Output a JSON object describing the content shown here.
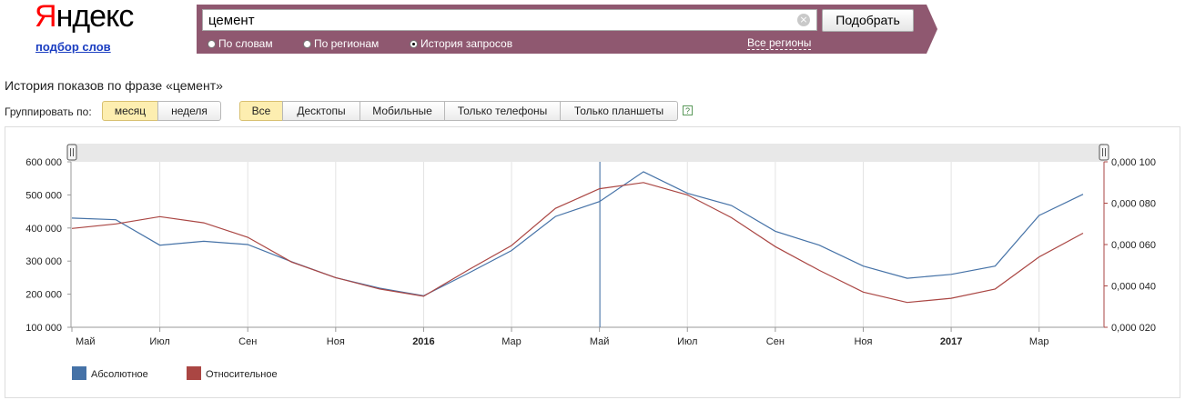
{
  "header": {
    "logo_first": "Я",
    "logo_rest": "ндекс",
    "subtitle": "подбор слов",
    "search_value": "цемент",
    "clear_icon": "×",
    "submit_label": "Подобрать",
    "radio_by_words": "По словам",
    "radio_by_regions": "По регионам",
    "radio_history": "История запросов",
    "selected_mode": "История запросов",
    "regions_link": "Все регионы",
    "bar_color": "#8f5870"
  },
  "controls": {
    "heading": "История показов по фразе «цемент»",
    "group_label": "Группировать по:",
    "group_month": "месяц",
    "group_week": "неделя",
    "group_selected": "месяц",
    "device_all": "Все",
    "device_desktop": "Десктопы",
    "device_mobile": "Мобильные",
    "device_phones": "Только телефоны",
    "device_tablets": "Только планшеты",
    "device_selected": "Все",
    "help_icon": "?"
  },
  "chart_data": {
    "type": "line",
    "x": [
      "2015-05",
      "2015-06",
      "2015-07",
      "2015-08",
      "2015-09",
      "2015-10",
      "2015-11",
      "2015-12",
      "2016-01",
      "2016-02",
      "2016-03",
      "2016-04",
      "2016-05",
      "2016-06",
      "2016-07",
      "2016-08",
      "2016-09",
      "2016-10",
      "2016-11",
      "2016-12",
      "2017-01",
      "2017-02",
      "2017-03",
      "2017-04"
    ],
    "x_tick_labels": [
      "Май",
      "Июл",
      "Сен",
      "Ноя",
      "2016",
      "Мар",
      "Май",
      "Июл",
      "Сен",
      "Ноя",
      "2017",
      "Мар"
    ],
    "y_left_ticks": [
      "100 000",
      "200 000",
      "300 000",
      "400 000",
      "500 000",
      "600 000"
    ],
    "y_left_lim": [
      100000,
      600000
    ],
    "y_right_ticks": [
      "0,000 020",
      "0,000 040",
      "0,000 060",
      "0,000 080",
      "0,000 100"
    ],
    "y_right_lim": [
      2e-05,
      0.0001
    ],
    "series": [
      {
        "name": "Абсолютное",
        "axis": "left",
        "color": "#4572a7",
        "values": [
          430000,
          425000,
          348000,
          360000,
          350000,
          298000,
          250000,
          218000,
          195000,
          262000,
          332000,
          435000,
          480000,
          570000,
          505000,
          468000,
          390000,
          348000,
          285000,
          248000,
          260000,
          285000,
          438000,
          502000
        ]
      },
      {
        "name": "Относительное",
        "axis": "right",
        "color": "#aa4643",
        "values": [
          6.78e-05,
          7e-05,
          7.35e-05,
          7.05e-05,
          6.35e-05,
          5.15e-05,
          4.4e-05,
          3.85e-05,
          3.5e-05,
          4.75e-05,
          5.95e-05,
          7.75e-05,
          8.7e-05,
          9e-05,
          8.4e-05,
          7.3e-05,
          5.9e-05,
          4.75e-05,
          3.7e-05,
          3.2e-05,
          3.4e-05,
          3.85e-05,
          5.4e-05,
          6.55e-05
        ]
      }
    ],
    "crosshair_x": "2016-05",
    "grid": "vertical",
    "legend_position": "bottom-left"
  }
}
